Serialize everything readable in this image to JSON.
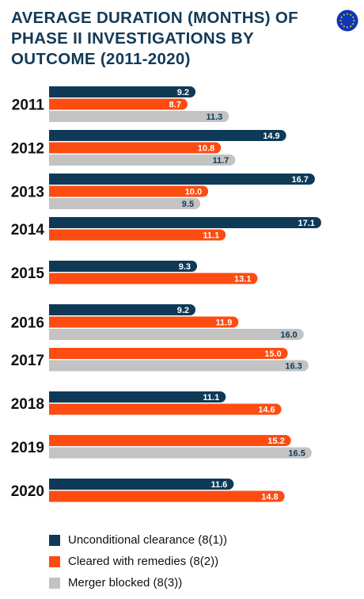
{
  "colors": {
    "title": "#123a57",
    "unconditional": "#0e3a58",
    "remedies": "#fc4c12",
    "blocked": "#c3c3c3",
    "flag_blue": "#1035b5",
    "flag_star": "#ffdd00"
  },
  "icons": {
    "badge": "eu-flag-icon"
  },
  "chart_data": {
    "type": "bar",
    "orientation": "horizontal",
    "title": [
      "AVERAGE DURATION (MONTHS) OF",
      "PHASE II INVESTIGATIONS BY",
      "OUTCOME (2011-2020)"
    ],
    "categories": [
      "2011",
      "2012",
      "2013",
      "2014",
      "2015",
      "2016",
      "2017",
      "2018",
      "2019",
      "2020"
    ],
    "series": [
      {
        "name": "Unconditional clearance (8(1))",
        "color": "#0e3a58",
        "values": [
          9.2,
          14.9,
          16.7,
          17.1,
          9.3,
          9.2,
          null,
          11.1,
          null,
          11.6
        ]
      },
      {
        "name": "Cleared with remedies (8(2))",
        "color": "#fc4c12",
        "values": [
          8.7,
          10.8,
          10.0,
          11.1,
          13.1,
          11.9,
          15.0,
          14.6,
          15.2,
          14.8
        ]
      },
      {
        "name": "Merger blocked (8(3))",
        "color": "#c3c3c3",
        "values": [
          11.3,
          11.7,
          9.5,
          null,
          null,
          16.0,
          16.3,
          null,
          16.5,
          null
        ]
      }
    ],
    "data_labels": true,
    "value_format": "one-decimal",
    "xlim": [
      0,
      17.8
    ],
    "grid": false,
    "legend_position": "bottom-left"
  }
}
